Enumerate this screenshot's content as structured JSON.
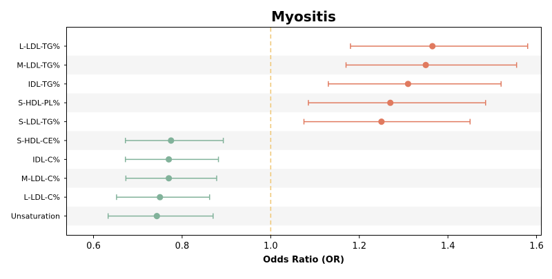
{
  "chart_data": {
    "type": "scatter",
    "subtype": "forest-plot",
    "title": "Myositis",
    "xlabel": "Odds Ratio (OR)",
    "ylabel": "",
    "xlim": [
      0.54,
      1.61
    ],
    "xticks": [
      0.6,
      0.8,
      1.0,
      1.2,
      1.4,
      1.6
    ],
    "xtick_labels": [
      "0.6",
      "0.8",
      "1.0",
      "1.2",
      "1.4",
      "1.6"
    ],
    "reference_line": {
      "x": 1.0,
      "style": "dashed",
      "color": "#f0c879"
    },
    "alternating_row_shading": true,
    "grid": false,
    "colors": {
      "risk": "#e07a5f",
      "protective": "#81b29a",
      "row_band": "#f5f5f5"
    },
    "categories": [
      "L-LDL-TG%",
      "M-LDL-TG%",
      "IDL-TG%",
      "S-HDL-PL%",
      "S-LDL-TG%",
      "S-HDL-CE%",
      "IDL-C%",
      "M-LDL-C%",
      "L-LDL-C%",
      "Unsaturation"
    ],
    "series": [
      {
        "values": [
          {
            "category": "L-LDL-TG%",
            "or": 1.365,
            "ci_low": 1.18,
            "ci_high": 1.58,
            "group": "risk"
          },
          {
            "category": "M-LDL-TG%",
            "or": 1.35,
            "ci_low": 1.17,
            "ci_high": 1.555,
            "group": "risk"
          },
          {
            "category": "IDL-TG%",
            "or": 1.31,
            "ci_low": 1.13,
            "ci_high": 1.52,
            "group": "risk"
          },
          {
            "category": "S-HDL-PL%",
            "or": 1.27,
            "ci_low": 1.085,
            "ci_high": 1.485,
            "group": "risk"
          },
          {
            "category": "S-LDL-TG%",
            "or": 1.25,
            "ci_low": 1.075,
            "ci_high": 1.45,
            "group": "risk"
          },
          {
            "category": "S-HDL-CE%",
            "or": 0.775,
            "ci_low": 0.672,
            "ci_high": 0.893,
            "group": "protective"
          },
          {
            "category": "IDL-C%",
            "or": 0.77,
            "ci_low": 0.672,
            "ci_high": 0.882,
            "group": "protective"
          },
          {
            "category": "M-LDL-C%",
            "or": 0.77,
            "ci_low": 0.673,
            "ci_high": 0.878,
            "group": "protective"
          },
          {
            "category": "L-LDL-C%",
            "or": 0.75,
            "ci_low": 0.652,
            "ci_high": 0.862,
            "group": "protective"
          },
          {
            "category": "Unsaturation",
            "or": 0.743,
            "ci_low": 0.633,
            "ci_high": 0.87,
            "group": "protective"
          }
        ]
      }
    ]
  }
}
